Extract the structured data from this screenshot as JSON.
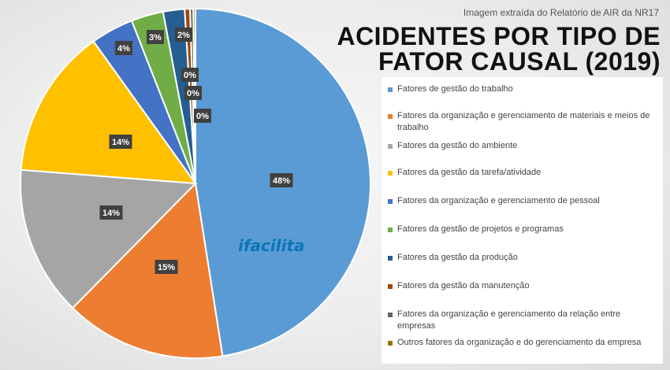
{
  "source_note": "Imagem extraída do Relatório de AIR da NR17",
  "title_line1": "ACIDENTES POR TIPO DE",
  "title_line2": "FATOR CAUSAL (2019)",
  "logo_text": "ifacilita",
  "chart_data": {
    "type": "pie",
    "title": "ACIDENTES POR TIPO DE FATOR CAUSAL (2019)",
    "legend_position": "right",
    "slices": [
      {
        "label": "Fatores de gestão do trabalho",
        "value": 48,
        "display": "48%",
        "color": "#5b9bd5"
      },
      {
        "label": "Fatores da organização e gerenciamento de materiais e meios de trabalho",
        "value": 15,
        "display": "15%",
        "color": "#ed7d31"
      },
      {
        "label": "Fatores da gestão do ambiente",
        "value": 14,
        "display": "14%",
        "color": "#a5a5a5"
      },
      {
        "label": "Fatores da gestão da tarefa/atividade",
        "value": 14,
        "display": "14%",
        "color": "#ffc000"
      },
      {
        "label": "Fatores da organização  e gerenciamento de pessoal",
        "value": 4,
        "display": "4%",
        "color": "#4472c4"
      },
      {
        "label": "Fatores da gestão de projetos e programas",
        "value": 3,
        "display": "3%",
        "color": "#70ad47"
      },
      {
        "label": "Fatores da gestão da produção",
        "value": 2,
        "display": "2%",
        "color": "#255e91"
      },
      {
        "label": "Fatores da gestão da manutenção",
        "value": 0.5,
        "display": "0%",
        "color": "#9e480e"
      },
      {
        "label": "Fatores da organização e gerenciamento da relação entre empresas",
        "value": 0.3,
        "display": "0%",
        "color": "#636363"
      },
      {
        "label": "Outros fatores da organização e do gerenciamento da empresa",
        "value": 0.2,
        "display": "0%",
        "color": "#997300"
      }
    ]
  }
}
